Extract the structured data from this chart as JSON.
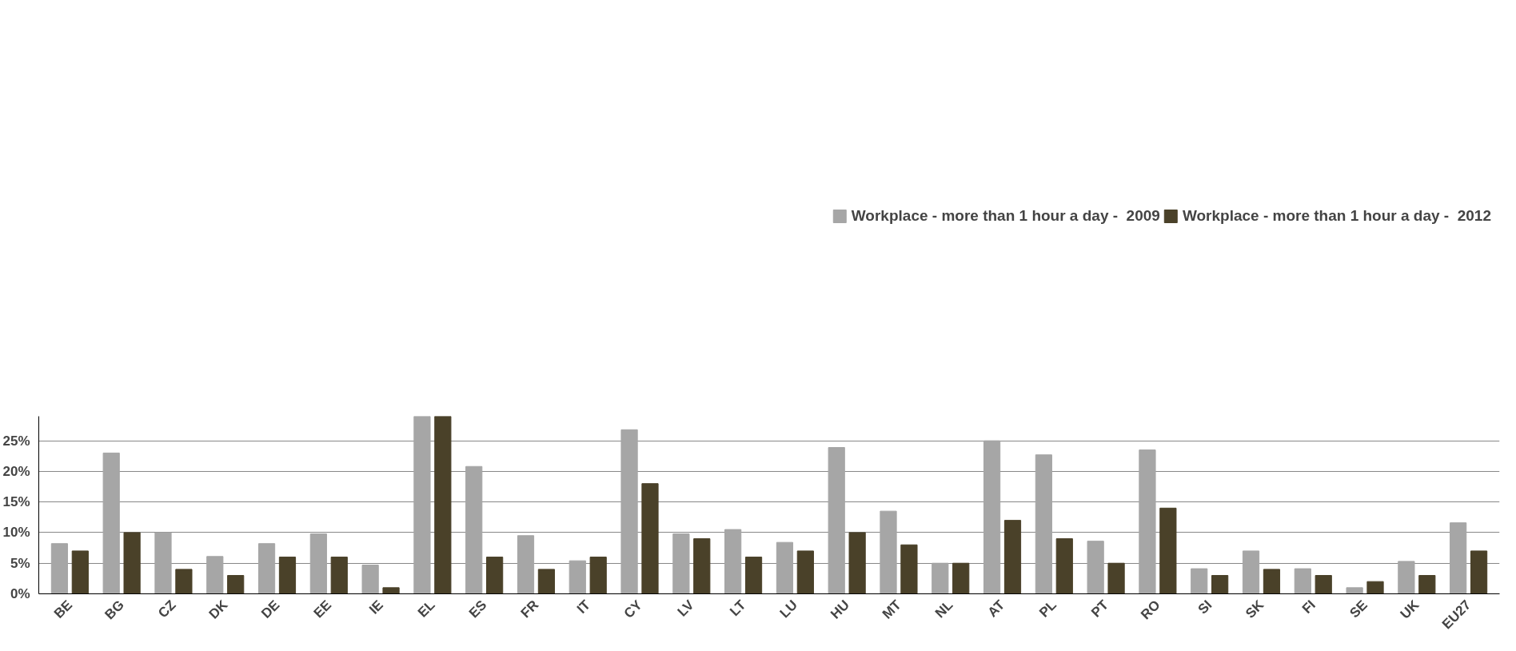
{
  "chart_data": {
    "type": "bar",
    "categories": [
      "BE",
      "BG",
      "CZ",
      "DK",
      "DE",
      "EE",
      "IE",
      "EL",
      "ES",
      "FR",
      "IT",
      "CY",
      "LV",
      "LT",
      "LU",
      "HU",
      "MT",
      "NL",
      "AT",
      "PL",
      "PT",
      "RO",
      "SI",
      "SK",
      "FI",
      "SE",
      "UK",
      "EU27"
    ],
    "series": [
      {
        "name": "Workplace - more than 1 hour a day -  2009",
        "color": "#a6a6a6",
        "values": [
          8.2,
          23,
          10,
          6.1,
          8.2,
          9.8,
          4.7,
          29,
          20.8,
          9.5,
          5.4,
          26.8,
          9.8,
          10.5,
          8.4,
          23.9,
          13.5,
          5,
          25,
          22.7,
          8.6,
          23.5,
          4.1,
          7,
          4.1,
          1,
          5.3,
          11.6
        ]
      },
      {
        "name": "Workplace - more than 1 hour a day -  2012",
        "color": "#4a4129",
        "values": [
          7,
          10,
          4,
          3,
          6,
          6,
          1,
          29,
          6,
          4,
          6,
          18,
          9,
          6,
          7,
          10,
          8,
          5,
          12,
          9,
          5,
          14,
          3,
          4,
          3,
          2,
          3,
          7
        ]
      }
    ],
    "ylim": [
      0,
      29
    ],
    "yticks": [
      {
        "value": 0,
        "label": "0%"
      },
      {
        "value": 5,
        "label": "5%"
      },
      {
        "value": 10,
        "label": "10%"
      },
      {
        "value": 15,
        "label": "15%"
      },
      {
        "value": 20,
        "label": "20%"
      },
      {
        "value": 25,
        "label": "25%"
      }
    ],
    "grid": "y",
    "legend": "top"
  }
}
